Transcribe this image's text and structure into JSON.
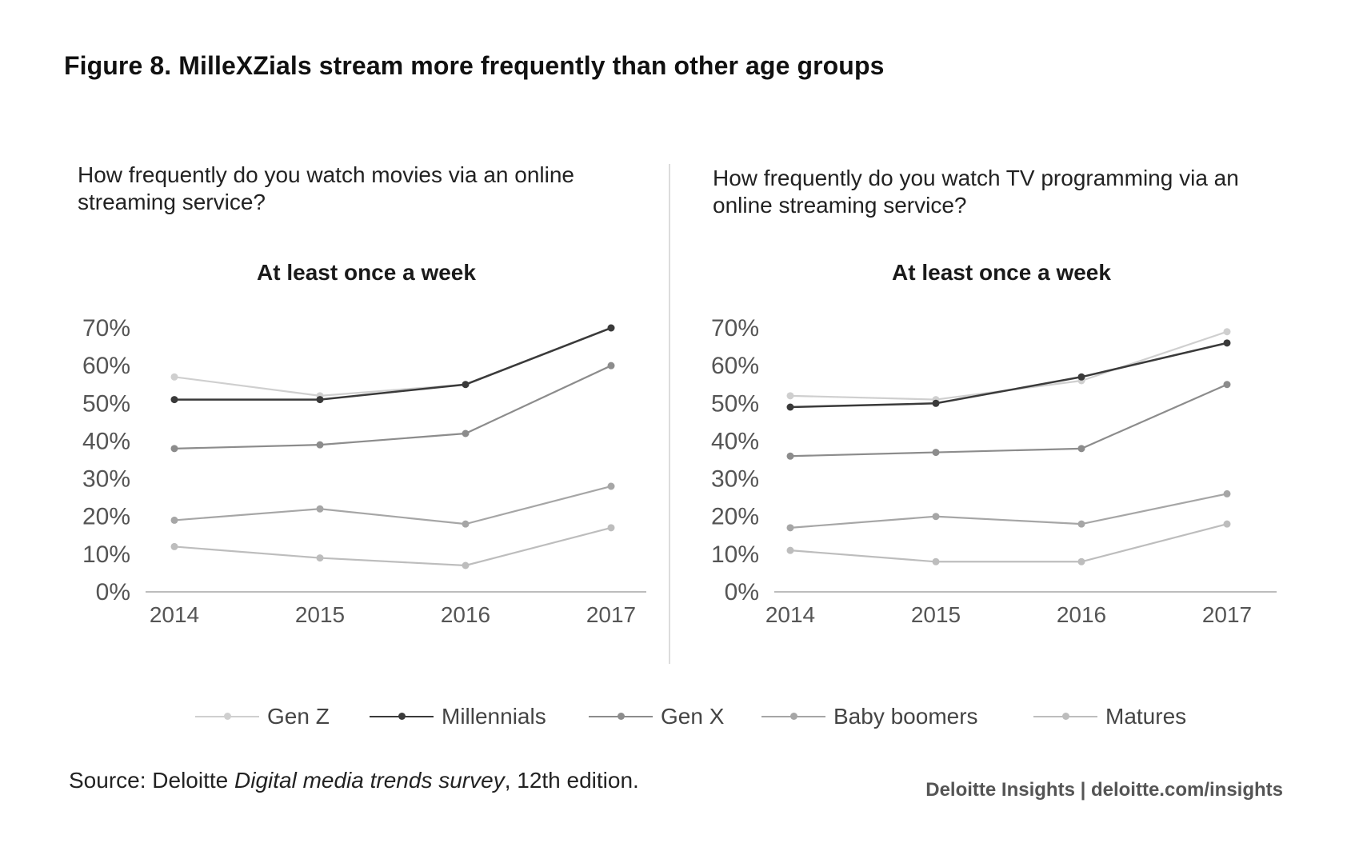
{
  "figure_title": "Figure 8. MilleXZials stream more frequently than other age groups",
  "source": {
    "prefix": "Source: Deloitte ",
    "italic": "Digital media trends survey",
    "suffix": ", 12th edition."
  },
  "credit": "Deloitte Insights | deloitte.com/insights",
  "legend": [
    {
      "name": "Gen Z",
      "color": "#cfcfcf"
    },
    {
      "name": "Millennials",
      "color": "#3a3a3a"
    },
    {
      "name": "Gen X",
      "color": "#8c8c8c"
    },
    {
      "name": "Baby boomers",
      "color": "#a6a6a6"
    },
    {
      "name": "Matures",
      "color": "#bdbdbd"
    }
  ],
  "chart_data": [
    {
      "type": "line",
      "question": "How frequently do you watch movies via an online streaming service?",
      "title": "At least once a week",
      "x": [
        "2014",
        "2015",
        "2016",
        "2017"
      ],
      "yticks": [
        "0%",
        "10%",
        "20%",
        "30%",
        "40%",
        "50%",
        "60%",
        "70%"
      ],
      "ylim": [
        0,
        70
      ],
      "grid": false,
      "legend_position": "bottom",
      "series": [
        {
          "name": "Gen Z",
          "color": "#cfcfcf",
          "values": [
            57,
            52,
            55,
            70
          ]
        },
        {
          "name": "Millennials",
          "color": "#3a3a3a",
          "values": [
            51,
            51,
            55,
            70
          ]
        },
        {
          "name": "Gen X",
          "color": "#8c8c8c",
          "values": [
            38,
            39,
            42,
            60
          ]
        },
        {
          "name": "Baby boomers",
          "color": "#a6a6a6",
          "values": [
            19,
            22,
            18,
            28
          ]
        },
        {
          "name": "Matures",
          "color": "#bdbdbd",
          "values": [
            12,
            9,
            7,
            17
          ]
        }
      ]
    },
    {
      "type": "line",
      "question": "How frequently do you watch TV programming via an online streaming service?",
      "title": "At least once a week",
      "x": [
        "2014",
        "2015",
        "2016",
        "2017"
      ],
      "yticks": [
        "0%",
        "10%",
        "20%",
        "30%",
        "40%",
        "50%",
        "60%",
        "70%"
      ],
      "ylim": [
        0,
        70
      ],
      "grid": false,
      "legend_position": "bottom",
      "series": [
        {
          "name": "Gen Z",
          "color": "#cfcfcf",
          "values": [
            52,
            51,
            56,
            69
          ]
        },
        {
          "name": "Millennials",
          "color": "#3a3a3a",
          "values": [
            49,
            50,
            57,
            66
          ]
        },
        {
          "name": "Gen X",
          "color": "#8c8c8c",
          "values": [
            36,
            37,
            38,
            55
          ]
        },
        {
          "name": "Baby boomers",
          "color": "#a6a6a6",
          "values": [
            17,
            20,
            18,
            26
          ]
        },
        {
          "name": "Matures",
          "color": "#bdbdbd",
          "values": [
            11,
            8,
            8,
            18
          ]
        }
      ]
    }
  ]
}
